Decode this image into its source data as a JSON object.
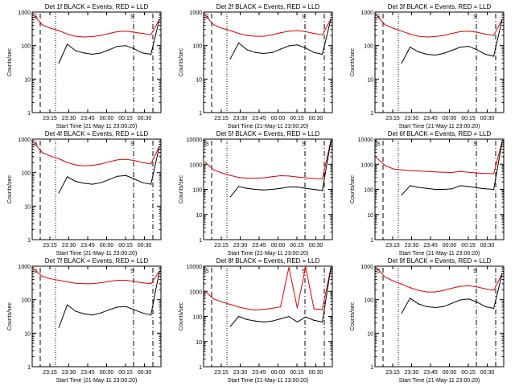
{
  "colors": {
    "events": "#000000",
    "lld": "#e00000",
    "background": "#ffffff",
    "axes": "#000000"
  },
  "chart_data": [
    {
      "type": "line",
      "title": "Det 1f BLACK = Events, RED = LLD",
      "xlabel": "Start Time (21-May-11 23:00:20)",
      "ylabel": "Counts/sec",
      "y_scale": "log",
      "ylim": [
        1,
        1000
      ],
      "y_ticks": [
        "1",
        "10",
        "100",
        "1000"
      ],
      "x_ticks": [
        "23:15",
        "23:30",
        "23:45",
        "00:00",
        "00:15",
        "00:30"
      ],
      "annotation_left": "S",
      "annotation_right": "S",
      "series": [
        {
          "color": "#e00000",
          "values": [
            800,
            420,
            330,
            280,
            220,
            190,
            180,
            185,
            200,
            230,
            260,
            270,
            250,
            230,
            210,
            600
          ]
        },
        {
          "color": "#000000",
          "values": [
            null,
            null,
            null,
            30,
            110,
            70,
            60,
            55,
            60,
            75,
            95,
            100,
            80,
            60,
            55,
            600
          ]
        }
      ]
    },
    {
      "type": "line",
      "title": "Det 2f BLACK = Events, RED = LLD",
      "xlabel": "Start Time (21-May-11 23:00:20)",
      "ylabel": "Counts/sec",
      "y_scale": "log",
      "ylim": [
        1,
        1000
      ],
      "y_ticks": [
        "1",
        "10",
        "100",
        "1000"
      ],
      "x_ticks": [
        "23:15",
        "23:30",
        "23:45",
        "00:00",
        "00:15",
        "00:30"
      ],
      "annotation_left": "S",
      "annotation_right": "S",
      "series": [
        {
          "color": "#e00000",
          "values": [
            800,
            420,
            330,
            280,
            230,
            200,
            190,
            190,
            210,
            240,
            270,
            280,
            260,
            230,
            210,
            600
          ]
        },
        {
          "color": "#000000",
          "values": [
            null,
            null,
            null,
            40,
            120,
            75,
            62,
            58,
            62,
            78,
            98,
            105,
            85,
            62,
            55,
            600
          ]
        }
      ]
    },
    {
      "type": "line",
      "title": "Det 3f BLACK = Events, RED = LLD",
      "xlabel": "Start Time (21-May-11 23:00:20)",
      "ylabel": "Counts/sec",
      "y_scale": "log",
      "ylim": [
        1,
        1000
      ],
      "y_ticks": [
        "1",
        "10",
        "100",
        "1000"
      ],
      "x_ticks": [
        "23:15",
        "23:30",
        "23:45",
        "00:00",
        "00:15",
        "00:30"
      ],
      "annotation_left": "S",
      "annotation_right": "S",
      "series": [
        {
          "color": "#e00000",
          "values": [
            800,
            420,
            330,
            270,
            220,
            190,
            180,
            185,
            200,
            230,
            260,
            270,
            250,
            220,
            200,
            600
          ]
        },
        {
          "color": "#000000",
          "values": [
            null,
            null,
            null,
            30,
            90,
            65,
            55,
            52,
            58,
            72,
            90,
            95,
            75,
            55,
            48,
            600
          ]
        }
      ]
    },
    {
      "type": "line",
      "title": "Det 4f BLACK = Events, RED = LLD",
      "xlabel": "Start Time (21-May-11 23:00:20)",
      "ylabel": "Counts/sec",
      "y_scale": "log",
      "ylim": [
        1,
        1000
      ],
      "y_ticks": [
        "1",
        "10",
        "100",
        "1000"
      ],
      "x_ticks": [
        "23:15",
        "23:30",
        "23:45",
        "00:00",
        "00:15",
        "00:30"
      ],
      "annotation_left": "S",
      "annotation_right": "S",
      "series": [
        {
          "color": "#e00000",
          "values": [
            800,
            400,
            310,
            260,
            200,
            170,
            160,
            165,
            180,
            210,
            240,
            250,
            230,
            200,
            180,
            600
          ]
        },
        {
          "color": "#000000",
          "values": [
            null,
            null,
            null,
            25,
            75,
            55,
            48,
            45,
            50,
            62,
            78,
            82,
            65,
            50,
            45,
            600
          ]
        }
      ]
    },
    {
      "type": "line",
      "title": "Det 5f BLACK = Events, RED = LLD",
      "xlabel": "Start Time (21-May-11 23:00:20)",
      "ylabel": "Counts/sec",
      "y_scale": "log",
      "ylim": [
        1,
        10000
      ],
      "y_ticks": [
        "1",
        "10",
        "100",
        "1000",
        "10000"
      ],
      "x_ticks": [
        "23:15",
        "23:30",
        "23:45",
        "00:00",
        "00:15",
        "00:30"
      ],
      "annotation_left": "S",
      "annotation_right": "S",
      "series": [
        {
          "color": "#e00000",
          "values": [
            1200,
            600,
            450,
            360,
            300,
            280,
            280,
            290,
            320,
            350,
            340,
            310,
            290,
            270,
            260,
            8000
          ]
        },
        {
          "color": "#000000",
          "values": [
            null,
            null,
            null,
            50,
            130,
            110,
            100,
            95,
            100,
            110,
            125,
            125,
            110,
            100,
            90,
            8000
          ]
        }
      ]
    },
    {
      "type": "line",
      "title": "Det 6f BLACK = Events, RED = LLD",
      "xlabel": "Start Time (21-May-11 23:00:20)",
      "ylabel": "Counts/sec",
      "y_scale": "log",
      "ylim": [
        1,
        10000
      ],
      "y_ticks": [
        "1",
        "10",
        "100",
        "1000",
        "10000"
      ],
      "x_ticks": [
        "23:15",
        "23:30",
        "23:45",
        "00:00",
        "00:15",
        "00:30"
      ],
      "annotation_left": "S",
      "annotation_right": "S",
      "series": [
        {
          "color": "#e00000",
          "values": [
            1800,
            900,
            650,
            600,
            560,
            540,
            520,
            500,
            480,
            470,
            520,
            480,
            450,
            430,
            420,
            8000
          ]
        },
        {
          "color": "#000000",
          "values": [
            null,
            null,
            null,
            60,
            140,
            120,
            110,
            100,
            100,
            105,
            140,
            130,
            115,
            105,
            100,
            8000
          ]
        }
      ]
    },
    {
      "type": "line",
      "title": "Det 7f BLACK = Events, RED = LLD",
      "xlabel": "Start Time (21-May-11 23:00:20)",
      "ylabel": "Counts/sec",
      "y_scale": "log",
      "ylim": [
        1,
        1000
      ],
      "y_ticks": [
        "1",
        "10",
        "100",
        "1000"
      ],
      "x_ticks": [
        "23:15",
        "23:30",
        "23:45",
        "00:00",
        "00:15",
        "00:30"
      ],
      "annotation_left": "S",
      "annotation_right": "S",
      "series": [
        {
          "color": "#e00000",
          "values": [
            800,
            500,
            420,
            380,
            340,
            310,
            300,
            300,
            320,
            350,
            380,
            380,
            350,
            320,
            300,
            700
          ]
        },
        {
          "color": "#000000",
          "values": [
            null,
            null,
            null,
            15,
            70,
            45,
            38,
            35,
            40,
            50,
            60,
            62,
            50,
            40,
            35,
            700
          ]
        }
      ]
    },
    {
      "type": "line",
      "title": "Det 8f BLACK = Events, RED = LLD",
      "xlabel": "Start Time (21-May-11 23:00:20)",
      "ylabel": "Counts/sec",
      "y_scale": "log",
      "ylim": [
        1,
        10000
      ],
      "y_ticks": [
        "1",
        "10",
        "100",
        "1000",
        "10000"
      ],
      "x_ticks": [
        "23:15",
        "23:30",
        "23:45",
        "00:00",
        "00:15",
        "00:30"
      ],
      "annotation_left": "S",
      "annotation_right": "S",
      "series": [
        {
          "color": "#e00000",
          "values": [
            1000,
            500,
            380,
            300,
            240,
            200,
            180,
            190,
            210,
            240,
            9000,
            220,
            10000,
            200,
            190,
            8000
          ]
        },
        {
          "color": "#000000",
          "values": [
            null,
            null,
            null,
            40,
            100,
            75,
            65,
            60,
            65,
            80,
            100,
            60,
            95,
            70,
            60,
            8000
          ]
        }
      ]
    },
    {
      "type": "line",
      "title": "Det 9f BLACK = Events, RED = LLD",
      "xlabel": "Start Time (21-May-11 23:00:20)",
      "ylabel": "Counts/sec",
      "y_scale": "log",
      "ylim": [
        1,
        1000
      ],
      "y_ticks": [
        "1",
        "10",
        "100",
        "1000"
      ],
      "x_ticks": [
        "23:15",
        "23:30",
        "23:45",
        "00:00",
        "00:15",
        "00:30"
      ],
      "annotation_left": "S",
      "annotation_right": "S",
      "series": [
        {
          "color": "#e00000",
          "values": [
            900,
            480,
            360,
            290,
            230,
            190,
            170,
            170,
            190,
            220,
            250,
            260,
            240,
            210,
            190,
            600
          ]
        },
        {
          "color": "#000000",
          "values": [
            null,
            null,
            null,
            40,
            110,
            75,
            62,
            58,
            62,
            78,
            98,
            105,
            85,
            62,
            55,
            600
          ]
        }
      ]
    }
  ]
}
